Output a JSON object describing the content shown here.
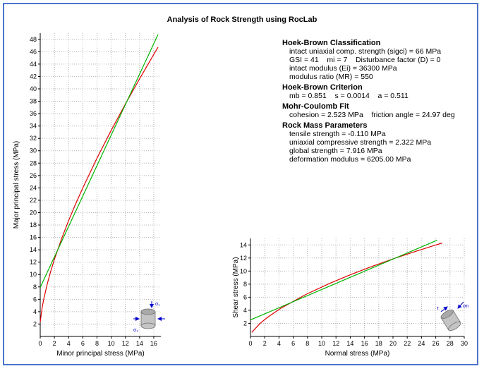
{
  "report": {
    "title": "Analysis of Rock Strength using RocLab",
    "sections": [
      {
        "heading": "Hoek-Brown Classification",
        "lines": [
          "intact uniaxial comp. strength (sigci) = 66 MPa",
          "GSI = 41    mi = 7    Disturbance factor (D) = 0",
          "intact modulus (Ei) = 36300 MPa",
          "modulus ratio (MR) = 550"
        ]
      },
      {
        "heading": "Hoek-Brown Criterion",
        "lines": [
          "mb = 0.851    s = 0.0014    a = 0.511"
        ]
      },
      {
        "heading": "Mohr-Coulomb Fit",
        "lines": [
          "cohesion = 2.523 MPa    friction angle = 24.97 deg"
        ]
      },
      {
        "heading": "Rock Mass Parameters",
        "lines": [
          "tensile strength = -0.110 MPa",
          "uniaxial compressive strength = 2.322 MPa",
          "global strength = 7.916 MPa",
          "deformation modulus = 6205.00 MPa"
        ]
      }
    ]
  },
  "frame": {
    "border_color": "#4a74c9"
  },
  "icons": {
    "sigma1": "σ₁",
    "sigma3": "σ₃",
    "sigman": "σn",
    "tau": "τ",
    "arrow_color": "#0000cc"
  },
  "chart_data": [
    {
      "type": "line",
      "title": "",
      "xlabel": "Minor principal stress (MPa)",
      "ylabel": "Major principal stress (MPa)",
      "xlim": [
        0,
        17
      ],
      "ylim": [
        0,
        49
      ],
      "xticks": [
        0,
        2,
        4,
        6,
        8,
        10,
        12,
        14,
        16
      ],
      "yticks": [
        2,
        4,
        6,
        8,
        10,
        12,
        14,
        16,
        18,
        20,
        22,
        24,
        26,
        28,
        30,
        32,
        34,
        36,
        38,
        40,
        42,
        44,
        46,
        48
      ],
      "grid": true,
      "legend": "none",
      "series": [
        {
          "name": "Hoek-Brown criterion",
          "color": "#dd0000",
          "x": [
            0,
            0.25,
            0.5,
            1,
            1.5,
            2,
            3,
            4,
            5,
            6,
            8,
            10,
            12,
            14,
            16,
            16.6
          ],
          "y": [
            2.3,
            4.48,
            6.04,
            8.53,
            10.6,
            12.46,
            15.75,
            18.71,
            21.44,
            24.0,
            28.82,
            33.3,
            37.55,
            41.62,
            45.56,
            46.73
          ]
        },
        {
          "name": "Mohr-Coulomb fit",
          "color": "#00b400",
          "x": [
            0,
            16.6
          ],
          "y": [
            7.92,
            48.78
          ]
        }
      ]
    },
    {
      "type": "line",
      "title": "",
      "xlabel": "Normal stress (MPa)",
      "ylabel": "Shear stress (MPa)",
      "xlim": [
        0,
        30
      ],
      "ylim": [
        0,
        15
      ],
      "xticks": [
        0,
        2,
        4,
        6,
        8,
        10,
        12,
        14,
        16,
        18,
        20,
        22,
        24,
        26,
        28,
        30
      ],
      "yticks": [
        2,
        4,
        6,
        8,
        10,
        12,
        14
      ],
      "grid": true,
      "legend": "none",
      "series": [
        {
          "name": "Hoek-Brown envelope",
          "color": "#dd0000",
          "x": [
            0.18,
            1.33,
            2.38,
            4.31,
            7.84,
            11.13,
            14.29,
            17.33,
            20.3,
            23.2,
            26.06,
            26.91
          ],
          "y": [
            0.62,
            1.98,
            2.91,
            4.34,
            6.46,
            8.13,
            9.56,
            10.82,
            11.97,
            13.02,
            14.01,
            14.3
          ]
        },
        {
          "name": "Mohr-Coulomb fit",
          "color": "#00b400",
          "x": [
            0,
            26.2
          ],
          "y": [
            2.52,
            14.72
          ]
        }
      ]
    }
  ]
}
